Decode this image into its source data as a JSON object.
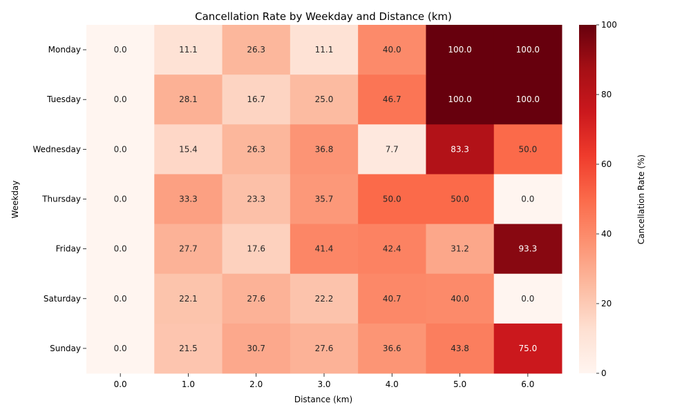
{
  "chart_data": {
    "type": "heatmap",
    "title": "Cancellation Rate by Weekday and Distance (km)",
    "xlabel": "Distance (km)",
    "ylabel": "Weekday",
    "x_categories": [
      "0.0",
      "1.0",
      "2.0",
      "3.0",
      "4.0",
      "5.0",
      "6.0"
    ],
    "y_categories": [
      "Monday",
      "Tuesday",
      "Wednesday",
      "Thursday",
      "Friday",
      "Saturday",
      "Sunday"
    ],
    "values": [
      [
        0.0,
        11.1,
        26.3,
        11.1,
        40.0,
        100.0,
        100.0
      ],
      [
        0.0,
        28.1,
        16.7,
        25.0,
        46.7,
        100.0,
        100.0
      ],
      [
        0.0,
        15.4,
        26.3,
        36.8,
        7.7,
        83.3,
        50.0
      ],
      [
        0.0,
        33.3,
        23.3,
        35.7,
        50.0,
        50.0,
        0.0
      ],
      [
        0.0,
        27.7,
        17.6,
        41.4,
        42.4,
        31.2,
        93.3
      ],
      [
        0.0,
        22.1,
        27.6,
        22.2,
        40.7,
        40.0,
        0.0
      ],
      [
        0.0,
        21.5,
        30.7,
        27.6,
        36.6,
        43.8,
        75.0
      ]
    ],
    "colorbar": {
      "label": "Cancellation Rate (%)",
      "range": [
        0,
        100
      ],
      "ticks": [
        0,
        20,
        40,
        60,
        80,
        100
      ],
      "colormap": "Reds"
    }
  }
}
